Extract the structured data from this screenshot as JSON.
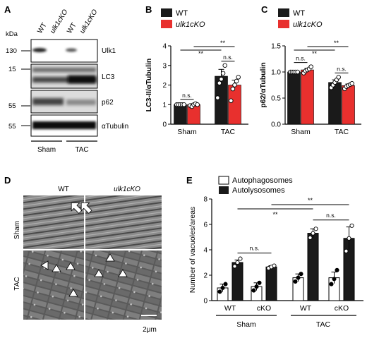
{
  "figure": {
    "panel_labels": [
      "A",
      "B",
      "C",
      "D",
      "E"
    ],
    "colors": {
      "wt": "#1a1a1a",
      "ko": "#e8302e",
      "white": "#ffffff",
      "black": "#1a1a1a"
    }
  },
  "panelA": {
    "col_headers": [
      "WT",
      "ulk1cKO",
      "WT",
      "ulk1cKO"
    ],
    "kda_label": "kDa",
    "blots": [
      {
        "name": "Ulk1",
        "marker": "130"
      },
      {
        "name": "LC3",
        "marker": "15"
      },
      {
        "name": "p62",
        "marker": "55"
      },
      {
        "name": "αTubulin",
        "marker": "55"
      }
    ],
    "groups": [
      "Sham",
      "TAC"
    ]
  },
  "panelD": {
    "col_headers": [
      "WT",
      "ulk1cKO"
    ],
    "row_headers": [
      "Sham",
      "TAC"
    ],
    "scalebar": "2μm"
  },
  "chart_data": [
    {
      "panel": "B",
      "type": "bar",
      "categories": [
        "Sham",
        "TAC"
      ],
      "series": [
        {
          "name": "WT",
          "values": [
            1.0,
            2.45
          ],
          "errors": [
            0.0,
            0.35
          ],
          "points": [
            [
              1.0,
              1.0,
              1.0,
              1.0,
              1.0
            ],
            [
              1.35,
              2.1,
              2.3,
              2.6,
              3.0
            ]
          ]
        },
        {
          "name": "ulk1cKO",
          "values": [
            1.0,
            2.0
          ],
          "errors": [
            0.05,
            0.25
          ],
          "points": [
            [
              0.95,
              0.9,
              1.0,
              1.05,
              1.0
            ],
            [
              1.2,
              1.8,
              2.0,
              2.2,
              2.4
            ]
          ]
        }
      ],
      "ylabel": "LC3-II/αTubulin",
      "ylim": [
        0,
        4
      ],
      "yticks": [
        "0",
        "1",
        "2",
        "3",
        "4"
      ],
      "annotations": {
        "within_sham": "n.s.",
        "within_tac": "n.s.",
        "sham_vs_tac_wt": "**",
        "sham_vs_tac_ko": "**"
      }
    },
    {
      "panel": "C",
      "type": "bar",
      "categories": [
        "Sham",
        "TAC"
      ],
      "series": [
        {
          "name": "WT",
          "values": [
            1.0,
            0.8
          ],
          "errors": [
            0.0,
            0.05
          ],
          "points": [
            [
              1.0,
              1.0,
              1.0,
              1.0,
              1.0
            ],
            [
              0.7,
              0.75,
              0.8,
              0.85,
              0.9
            ]
          ]
        },
        {
          "name": "ulk1cKO",
          "values": [
            1.04,
            0.74
          ],
          "errors": [
            0.03,
            0.03
          ],
          "points": [
            [
              0.98,
              1.02,
              1.04,
              1.06,
              1.1
            ],
            [
              0.68,
              0.72,
              0.74,
              0.76,
              0.78
            ]
          ]
        }
      ],
      "ylabel": "p62/αTubulin",
      "ylim": [
        0,
        1.5
      ],
      "yticks": [
        "0.0",
        "0.5",
        "1.0",
        "1.5"
      ],
      "annotations": {
        "within_sham": "n.s.",
        "within_tac": "n.s.",
        "sham_vs_tac_wt": "**",
        "sham_vs_tac_ko": "**"
      }
    },
    {
      "panel": "E",
      "type": "bar",
      "categories": [
        "WT",
        "cKO",
        "WT",
        "cKO"
      ],
      "groups": [
        "Sham",
        "TAC"
      ],
      "series": [
        {
          "name": "Autophagosomes",
          "values": [
            1.0,
            1.1,
            1.8,
            1.8
          ],
          "errors": [
            0.3,
            0.3,
            0.3,
            0.45
          ],
          "points": [
            [
              0.7,
              1.0,
              1.3
            ],
            [
              0.8,
              1.1,
              1.4
            ],
            [
              1.5,
              1.8,
              2.1
            ],
            [
              1.3,
              1.7,
              2.4
            ]
          ]
        },
        {
          "name": "Autolysosomes",
          "values": [
            3.0,
            2.65,
            5.3,
            4.9
          ],
          "errors": [
            0.2,
            0.1,
            0.35,
            0.9
          ],
          "points": [
            [
              2.7,
              3.0,
              3.3
            ],
            [
              2.55,
              2.65,
              2.75
            ],
            [
              4.95,
              5.3,
              5.65
            ],
            [
              3.9,
              4.9,
              5.9
            ]
          ]
        }
      ],
      "ylabel": "Number of vacuoles/areas",
      "ylim": [
        0,
        8
      ],
      "yticks": [
        "0",
        "2",
        "4",
        "6",
        "8"
      ],
      "annotations": {
        "sham_within": "n.s.",
        "tac_within": "n.s.",
        "wt_sham_vs_tac": "**",
        "cko_sham_vs_tac": "**"
      }
    }
  ]
}
